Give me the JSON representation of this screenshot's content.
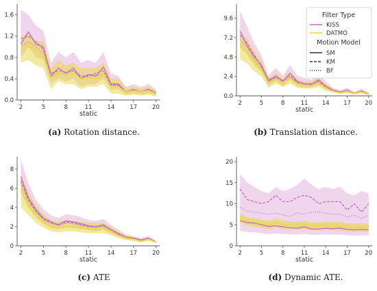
{
  "colors": {
    "kiss": "#c46bbd",
    "datmo": "#e8d84a",
    "axis": "#555555"
  },
  "legend": {
    "filter_title": "Filter Type",
    "filter_items": [
      "KISS",
      "DATMO"
    ],
    "motion_title": "Motion Model",
    "motion_items": [
      "SM",
      "KM",
      "BF"
    ]
  },
  "chart_data": [
    {
      "id": "a",
      "type": "line",
      "caption_label": "(a)",
      "caption_text": "Rotation distance.",
      "xlabel": "static",
      "ylabel": "",
      "xlim": [
        1.5,
        20.5
      ],
      "ylim": [
        0,
        1.75
      ],
      "xticks": [
        2,
        5,
        8,
        11,
        14,
        17,
        20
      ],
      "yticks": [
        0.0,
        0.4,
        0.8,
        1.2,
        1.6
      ],
      "ytick_labels": [
        "0.0",
        "0.4",
        "0.8",
        "1.2",
        "1.6"
      ],
      "x": [
        2,
        3,
        4,
        5,
        6,
        7,
        8,
        9,
        10,
        11,
        12,
        13,
        14,
        15,
        16,
        17,
        18,
        19,
        20
      ],
      "series": [
        {
          "filter": "KISS",
          "model": "SM",
          "values": [
            1.05,
            1.28,
            1.05,
            1.0,
            0.45,
            0.6,
            0.5,
            0.6,
            0.4,
            0.48,
            0.45,
            0.62,
            0.3,
            0.3,
            0.15,
            0.2,
            0.15,
            0.2,
            0.12
          ],
          "lower": [
            0.8,
            1.0,
            0.8,
            0.75,
            0.3,
            0.4,
            0.35,
            0.4,
            0.25,
            0.3,
            0.3,
            0.4,
            0.2,
            0.2,
            0.1,
            0.12,
            0.1,
            0.12,
            0.08
          ],
          "upper": [
            1.7,
            1.6,
            1.4,
            1.3,
            0.7,
            0.9,
            0.8,
            0.9,
            0.7,
            0.75,
            0.7,
            0.9,
            0.5,
            0.45,
            0.25,
            0.3,
            0.25,
            0.3,
            0.2
          ]
        },
        {
          "filter": "KISS",
          "model": "KM",
          "values": [
            1.15,
            1.2,
            1.1,
            0.95,
            0.5,
            0.55,
            0.52,
            0.55,
            0.45,
            0.45,
            0.5,
            0.55,
            0.28,
            0.28,
            0.15,
            0.18,
            0.15,
            0.2,
            0.14
          ]
        },
        {
          "filter": "KISS",
          "model": "BF",
          "values": [
            1.0,
            1.1,
            1.0,
            0.9,
            0.45,
            0.5,
            0.5,
            0.55,
            0.42,
            0.44,
            0.45,
            0.5,
            0.28,
            0.26,
            0.15,
            0.18,
            0.16,
            0.18,
            0.12
          ]
        },
        {
          "filter": "DATMO",
          "model": "SM",
          "values": [
            1.0,
            1.05,
            0.95,
            0.85,
            0.4,
            0.55,
            0.45,
            0.5,
            0.4,
            0.42,
            0.4,
            0.5,
            0.25,
            0.25,
            0.15,
            0.18,
            0.15,
            0.18,
            0.12
          ],
          "lower": [
            0.7,
            0.75,
            0.65,
            0.6,
            0.2,
            0.35,
            0.3,
            0.3,
            0.2,
            0.25,
            0.25,
            0.3,
            0.12,
            0.12,
            0.08,
            0.1,
            0.08,
            0.1,
            0.06
          ],
          "upper": [
            1.2,
            1.25,
            1.1,
            1.1,
            0.6,
            0.75,
            0.65,
            0.7,
            0.6,
            0.6,
            0.6,
            0.7,
            0.4,
            0.4,
            0.22,
            0.25,
            0.22,
            0.25,
            0.18
          ]
        },
        {
          "filter": "DATMO",
          "model": "KM",
          "values": [
            0.95,
            1.0,
            0.95,
            0.85,
            0.42,
            0.5,
            0.48,
            0.5,
            0.4,
            0.4,
            0.42,
            0.48,
            0.25,
            0.25,
            0.14,
            0.17,
            0.15,
            0.17,
            0.12
          ]
        },
        {
          "filter": "DATMO",
          "model": "BF",
          "values": [
            0.9,
            1.0,
            0.9,
            0.8,
            0.4,
            0.5,
            0.45,
            0.48,
            0.38,
            0.4,
            0.4,
            0.45,
            0.24,
            0.24,
            0.14,
            0.16,
            0.14,
            0.16,
            0.11
          ]
        }
      ]
    },
    {
      "id": "b",
      "type": "line",
      "caption_label": "(b)",
      "caption_text": "Translation distance.",
      "xlabel": "static",
      "ylabel": "",
      "xlim": [
        1.5,
        20.5
      ],
      "ylim": [
        0,
        11
      ],
      "xticks": [
        2,
        5,
        8,
        11,
        14,
        17,
        20
      ],
      "yticks": [
        0.0,
        2.4,
        4.8,
        7.2,
        9.6
      ],
      "ytick_labels": [
        "0.0",
        "2.4",
        "4.8",
        "7.2",
        "9.6"
      ],
      "x": [
        2,
        3,
        4,
        5,
        6,
        7,
        8,
        9,
        10,
        11,
        12,
        13,
        14,
        15,
        16,
        17,
        18,
        19,
        20
      ],
      "series": [
        {
          "filter": "KISS",
          "model": "SM",
          "values": [
            8.0,
            6.2,
            4.8,
            3.8,
            1.8,
            2.5,
            1.8,
            2.8,
            1.8,
            1.5,
            1.4,
            2.0,
            1.2,
            0.7,
            0.5,
            0.7,
            0.3,
            0.6,
            0.2
          ],
          "lower": [
            6.0,
            5.0,
            3.8,
            3.0,
            1.2,
            1.8,
            1.2,
            2.0,
            1.2,
            1.0,
            1.0,
            1.4,
            0.8,
            0.5,
            0.3,
            0.4,
            0.2,
            0.4,
            0.1
          ],
          "upper": [
            10.5,
            8.5,
            6.5,
            5.0,
            2.5,
            3.5,
            2.5,
            3.8,
            2.5,
            2.2,
            2.0,
            2.8,
            1.8,
            1.0,
            0.7,
            1.0,
            0.5,
            0.9,
            0.4
          ]
        },
        {
          "filter": "KISS",
          "model": "KM",
          "values": [
            7.5,
            6.5,
            5.0,
            3.6,
            2.0,
            2.3,
            1.9,
            2.5,
            1.7,
            1.5,
            1.5,
            1.8,
            1.1,
            0.7,
            0.5,
            0.6,
            0.3,
            0.6,
            0.2
          ]
        },
        {
          "filter": "KISS",
          "model": "BF",
          "values": [
            7.0,
            6.0,
            4.5,
            3.4,
            1.8,
            2.2,
            1.8,
            2.3,
            1.6,
            1.4,
            1.4,
            1.7,
            1.0,
            0.6,
            0.4,
            0.6,
            0.3,
            0.5,
            0.2
          ]
        },
        {
          "filter": "DATMO",
          "model": "SM",
          "values": [
            6.5,
            5.5,
            4.3,
            3.3,
            1.6,
            2.1,
            1.6,
            2.2,
            1.5,
            1.3,
            1.3,
            1.6,
            1.0,
            0.6,
            0.4,
            0.6,
            0.3,
            0.5,
            0.2
          ],
          "lower": [
            4.5,
            4.0,
            3.0,
            2.4,
            1.0,
            1.5,
            1.1,
            1.5,
            1.0,
            0.9,
            0.9,
            1.1,
            0.6,
            0.4,
            0.25,
            0.35,
            0.15,
            0.3,
            0.1
          ],
          "upper": [
            8.0,
            7.0,
            5.5,
            4.3,
            2.2,
            2.8,
            2.2,
            3.0,
            2.0,
            1.8,
            1.8,
            2.2,
            1.4,
            0.9,
            0.6,
            0.8,
            0.45,
            0.75,
            0.35
          ]
        },
        {
          "filter": "DATMO",
          "model": "KM",
          "values": [
            6.2,
            5.4,
            4.2,
            3.2,
            1.7,
            2.0,
            1.6,
            2.1,
            1.4,
            1.3,
            1.2,
            1.5,
            0.9,
            0.6,
            0.4,
            0.55,
            0.3,
            0.5,
            0.2
          ]
        },
        {
          "filter": "DATMO",
          "model": "BF",
          "values": [
            6.0,
            5.2,
            4.0,
            3.1,
            1.6,
            2.0,
            1.5,
            2.0,
            1.4,
            1.2,
            1.2,
            1.5,
            0.9,
            0.6,
            0.4,
            0.5,
            0.3,
            0.45,
            0.2
          ]
        }
      ]
    },
    {
      "id": "c",
      "type": "line",
      "caption_label": "(c)",
      "caption_text": "ATE",
      "xlabel": "static",
      "ylabel": "",
      "xlim": [
        1.5,
        20.5
      ],
      "ylim": [
        0,
        9
      ],
      "xticks": [
        2,
        5,
        8,
        11,
        14,
        17,
        20
      ],
      "yticks": [
        0,
        2,
        4,
        6,
        8
      ],
      "ytick_labels": [
        "0",
        "2",
        "4",
        "6",
        "8"
      ],
      "x": [
        2,
        3,
        4,
        5,
        6,
        7,
        8,
        9,
        10,
        11,
        12,
        13,
        14,
        15,
        16,
        17,
        18,
        19,
        20
      ],
      "series": [
        {
          "filter": "KISS",
          "model": "SM",
          "values": [
            7.2,
            5.0,
            3.8,
            2.9,
            2.5,
            2.2,
            2.6,
            2.5,
            2.3,
            2.1,
            2.0,
            2.2,
            1.7,
            1.3,
            0.9,
            0.8,
            0.6,
            0.8,
            0.4
          ],
          "lower": [
            5.5,
            4.0,
            3.0,
            2.3,
            1.9,
            1.7,
            2.0,
            1.9,
            1.8,
            1.6,
            1.5,
            1.7,
            1.3,
            1.0,
            0.7,
            0.6,
            0.4,
            0.6,
            0.3
          ],
          "upper": [
            9.0,
            6.5,
            4.8,
            3.8,
            3.2,
            2.9,
            3.3,
            3.2,
            3.0,
            2.7,
            2.6,
            2.8,
            2.2,
            1.7,
            1.2,
            1.0,
            0.8,
            1.0,
            0.55
          ]
        },
        {
          "filter": "KISS",
          "model": "KM",
          "values": [
            6.8,
            4.8,
            3.6,
            2.8,
            2.4,
            2.2,
            2.5,
            2.4,
            2.2,
            2.0,
            2.0,
            2.1,
            1.7,
            1.2,
            0.9,
            0.8,
            0.6,
            0.8,
            0.4
          ]
        },
        {
          "filter": "KISS",
          "model": "BF",
          "values": [
            6.5,
            4.6,
            3.5,
            2.7,
            2.3,
            2.1,
            2.4,
            2.3,
            2.1,
            2.0,
            1.9,
            2.0,
            1.6,
            1.2,
            0.9,
            0.8,
            0.6,
            0.7,
            0.4
          ]
        },
        {
          "filter": "DATMO",
          "model": "SM",
          "values": [
            6.0,
            4.2,
            3.2,
            2.5,
            2.0,
            1.9,
            2.0,
            2.0,
            1.9,
            1.8,
            1.8,
            1.8,
            1.5,
            1.1,
            0.8,
            0.7,
            0.5,
            0.7,
            0.4
          ],
          "lower": [
            4.0,
            3.2,
            2.4,
            1.9,
            1.5,
            1.4,
            1.5,
            1.5,
            1.4,
            1.3,
            1.3,
            1.3,
            1.1,
            0.8,
            0.6,
            0.5,
            0.35,
            0.5,
            0.25
          ],
          "upper": [
            7.5,
            5.5,
            4.2,
            3.3,
            2.7,
            2.5,
            2.7,
            2.6,
            2.5,
            2.4,
            2.4,
            2.4,
            2.0,
            1.5,
            1.1,
            0.9,
            0.7,
            0.9,
            0.5
          ]
        },
        {
          "filter": "DATMO",
          "model": "KM",
          "values": [
            5.8,
            4.1,
            3.1,
            2.4,
            2.0,
            1.9,
            2.0,
            2.0,
            1.8,
            1.8,
            1.7,
            1.8,
            1.5,
            1.1,
            0.8,
            0.7,
            0.5,
            0.7,
            0.35
          ]
        },
        {
          "filter": "DATMO",
          "model": "BF",
          "values": [
            5.6,
            4.0,
            3.0,
            2.4,
            1.9,
            1.8,
            1.9,
            1.9,
            1.8,
            1.7,
            1.7,
            1.7,
            1.4,
            1.0,
            0.8,
            0.7,
            0.5,
            0.6,
            0.35
          ]
        }
      ]
    },
    {
      "id": "d",
      "type": "line",
      "caption_label": "(d)",
      "caption_text": "Dynamic ATE.",
      "xlabel": "static",
      "ylabel": "",
      "xlim": [
        1.5,
        20.5
      ],
      "ylim": [
        0,
        20.5
      ],
      "xticks": [
        2,
        5,
        8,
        11,
        14,
        17,
        20
      ],
      "yticks": [
        0,
        5,
        10,
        15,
        20
      ],
      "ytick_labels": [
        "0",
        "5",
        "10",
        "15",
        "20"
      ],
      "x": [
        2,
        3,
        4,
        5,
        6,
        7,
        8,
        9,
        10,
        11,
        12,
        13,
        14,
        15,
        16,
        17,
        18,
        19,
        20
      ],
      "series": [
        {
          "filter": "KISS",
          "model": "SM",
          "values": [
            6.0,
            5.5,
            5.4,
            5.0,
            4.6,
            4.8,
            4.5,
            4.3,
            4.2,
            4.5,
            4.0,
            4.0,
            4.2,
            4.1,
            4.2,
            3.9,
            3.8,
            3.9,
            3.8
          ],
          "lower": [
            3.5,
            3.3,
            3.2,
            3.0,
            2.8,
            2.9,
            2.8,
            2.7,
            2.7,
            2.8,
            2.6,
            2.6,
            2.7,
            2.6,
            2.7,
            2.5,
            2.4,
            2.5,
            2.4
          ],
          "upper": [
            17.0,
            15.0,
            14.0,
            13.0,
            12.5,
            14.0,
            13.0,
            13.5,
            14.5,
            16.0,
            14.5,
            13.5,
            14.0,
            13.5,
            14.0,
            12.5,
            12.0,
            13.0,
            12.5
          ]
        },
        {
          "filter": "KISS",
          "model": "KM",
          "values": [
            13.5,
            11.0,
            10.5,
            10.0,
            10.5,
            12.0,
            10.5,
            10.5,
            11.5,
            12.0,
            11.5,
            10.0,
            10.5,
            10.5,
            10.5,
            8.5,
            10.0,
            8.0,
            10.0
          ]
        },
        {
          "filter": "KISS",
          "model": "BF",
          "values": [
            9.2,
            8.2,
            8.0,
            7.8,
            7.5,
            7.8,
            7.3,
            7.0,
            7.8,
            7.5,
            8.0,
            8.0,
            7.8,
            7.5,
            7.5,
            6.8,
            7.3,
            6.5,
            7.2
          ]
        },
        {
          "filter": "DATMO",
          "model": "SM",
          "values": [
            6.5,
            5.8,
            5.6,
            5.2,
            5.0,
            5.4,
            5.0,
            4.8,
            4.8,
            5.0,
            4.6,
            4.6,
            4.8,
            4.6,
            4.7,
            4.4,
            4.3,
            4.4,
            4.3
          ],
          "lower": [
            5.5,
            4.8,
            4.5,
            4.2,
            4.0,
            4.3,
            4.0,
            3.8,
            3.8,
            4.0,
            3.6,
            3.6,
            3.8,
            3.6,
            3.7,
            3.4,
            3.3,
            3.4,
            3.3
          ],
          "upper": [
            7.6,
            6.8,
            6.5,
            6.2,
            6.0,
            6.5,
            6.0,
            5.8,
            5.8,
            6.0,
            5.6,
            5.6,
            5.8,
            5.6,
            5.7,
            5.4,
            5.3,
            5.4,
            5.3
          ]
        },
        {
          "filter": "DATMO",
          "model": "KM",
          "values": [
            7.0,
            6.3,
            6.0,
            5.7,
            5.4,
            5.7,
            5.3,
            5.1,
            5.2,
            5.3,
            5.0,
            5.0,
            5.2,
            5.0,
            5.0,
            4.8,
            4.7,
            4.8,
            4.7
          ]
        },
        {
          "filter": "DATMO",
          "model": "BF",
          "values": [
            6.8,
            6.1,
            5.8,
            5.5,
            5.2,
            5.5,
            5.2,
            5.0,
            5.0,
            5.1,
            4.8,
            4.8,
            5.0,
            4.9,
            4.9,
            4.6,
            4.5,
            4.6,
            4.5
          ]
        }
      ]
    }
  ]
}
